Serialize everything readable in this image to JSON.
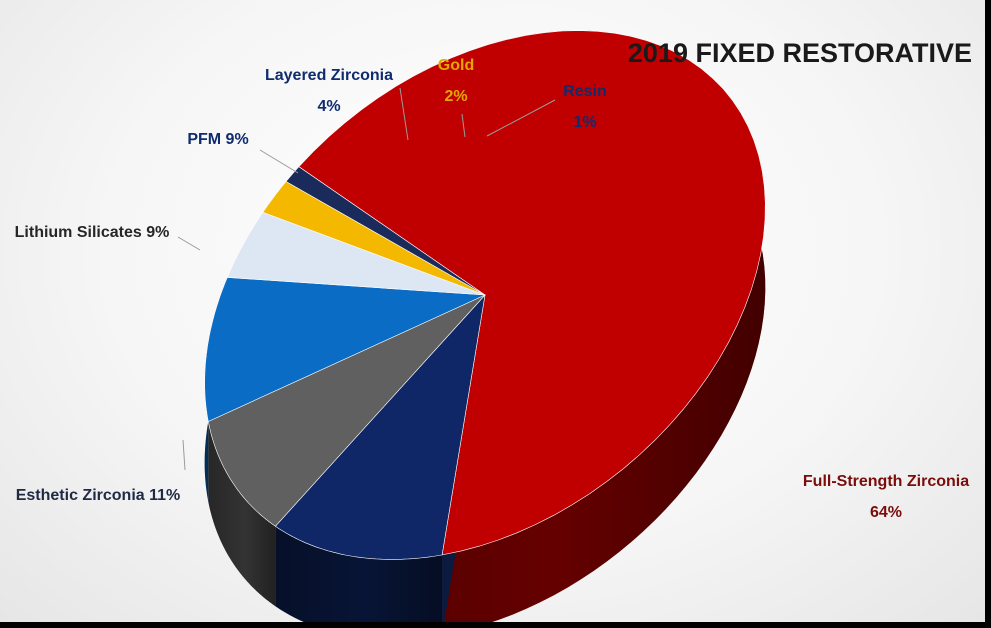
{
  "chart_data": {
    "type": "pie",
    "title": "2019 FIXED RESTORATIVE",
    "three_d": true,
    "slices": [
      {
        "name": "Full-Strength Zirconia",
        "value": 64,
        "label": "64%",
        "color": "#c00000",
        "label_color": "#7a0c0c"
      },
      {
        "name": "Esthetic Zirconia",
        "value": 11,
        "label": "11%",
        "color": "#0f2766",
        "label_color": "#1f2a44"
      },
      {
        "name": "Lithium Silicates",
        "value": 9,
        "label": "9%",
        "color": "#606060",
        "label_color": "#262626"
      },
      {
        "name": "PFM",
        "value": 9,
        "label": "9%",
        "color": "#0a6cc4",
        "label_color": "#0f2c6e"
      },
      {
        "name": "Layered Zirconia",
        "value": 4,
        "label": "4%",
        "color": "#dde7f4",
        "label_color": "#0f2c6e"
      },
      {
        "name": "Gold",
        "value": 2,
        "label": "2%",
        "color": "#f5b800",
        "label_color": "#e0a800"
      },
      {
        "name": "Resin",
        "value": 1,
        "label": "1%",
        "color": "#1a2a5a",
        "label_color": "#0f2c6e"
      }
    ]
  }
}
